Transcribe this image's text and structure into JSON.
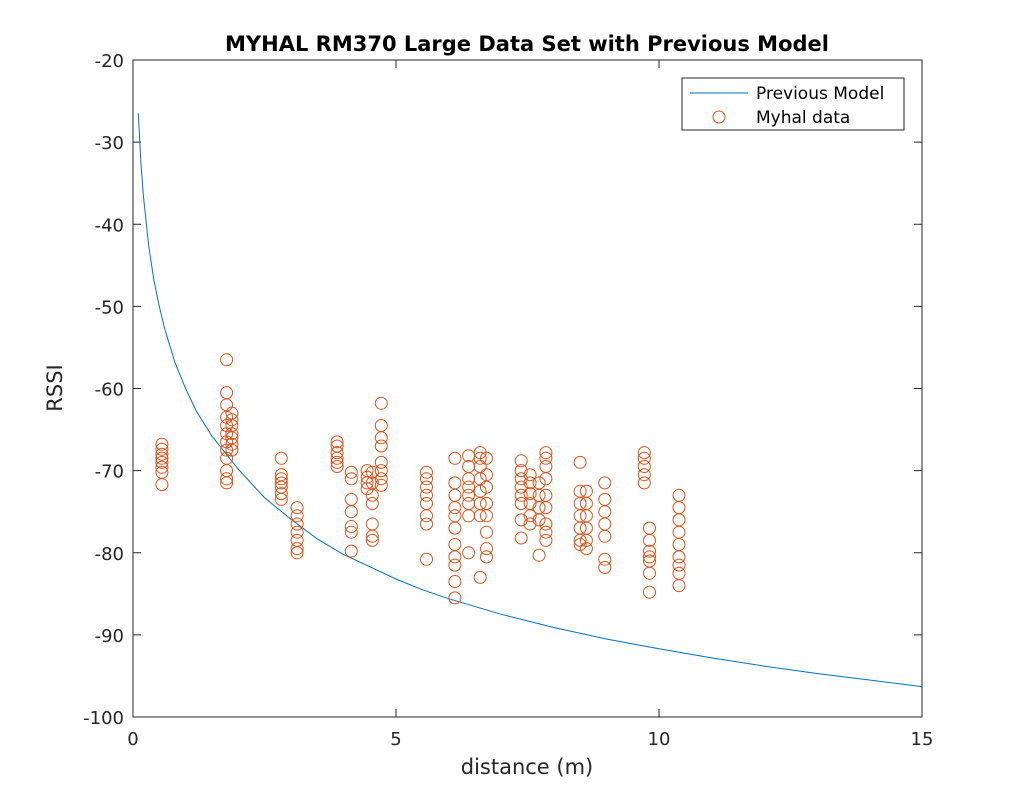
{
  "chart_data": {
    "type": "scatter",
    "title": "MYHAL RM370 Large Data Set with Previous Model",
    "xlabel": "distance (m)",
    "ylabel": "RSSI",
    "xlim": [
      0,
      15
    ],
    "ylim": [
      -100,
      -20
    ],
    "xticks": [
      0,
      5,
      10,
      15
    ],
    "xtick_labels": [
      "0",
      "5",
      "10",
      "15"
    ],
    "yticks": [
      -100,
      -90,
      -80,
      -70,
      -60,
      -50,
      -40,
      -30,
      -20
    ],
    "ytick_labels": [
      "-100",
      "-90",
      "-80",
      "-70",
      "-60",
      "-50",
      "-40",
      "-30",
      "-20"
    ],
    "grid": false,
    "legend_position": "top-right",
    "series": [
      {
        "name": "Previous Model",
        "kind": "line",
        "color": "#0072BD",
        "points": [
          [
            0.1,
            -26.5
          ],
          [
            0.15,
            -32.5
          ],
          [
            0.2,
            -36.7
          ],
          [
            0.3,
            -42.7
          ],
          [
            0.4,
            -46.9
          ],
          [
            0.5,
            -50.0
          ],
          [
            0.6,
            -52.7
          ],
          [
            0.8,
            -56.9
          ],
          [
            1.0,
            -60.0
          ],
          [
            1.2,
            -62.7
          ],
          [
            1.5,
            -65.8
          ],
          [
            2.0,
            -69.8
          ],
          [
            2.5,
            -73.3
          ],
          [
            3.0,
            -75.9
          ],
          [
            3.5,
            -78.3
          ],
          [
            4.0,
            -80.2
          ],
          [
            4.5,
            -81.7
          ],
          [
            5.0,
            -83.2
          ],
          [
            5.5,
            -84.5
          ],
          [
            6.0,
            -85.6
          ],
          [
            7.0,
            -87.5
          ],
          [
            8.0,
            -89.1
          ],
          [
            9.0,
            -90.5
          ],
          [
            10.0,
            -91.7
          ],
          [
            11.0,
            -92.8
          ],
          [
            12.0,
            -93.8
          ],
          [
            13.0,
            -94.7
          ],
          [
            14.0,
            -95.5
          ],
          [
            15.0,
            -96.3
          ]
        ]
      },
      {
        "name": "Myhal data",
        "kind": "scatter",
        "color": "#D95319",
        "points": [
          [
            0.55,
            -66.8
          ],
          [
            0.55,
            -67.4
          ],
          [
            0.55,
            -68.0
          ],
          [
            0.55,
            -68.5
          ],
          [
            0.55,
            -69.0
          ],
          [
            0.55,
            -69.6
          ],
          [
            0.55,
            -70.2
          ],
          [
            0.55,
            -71.7
          ],
          [
            1.78,
            -56.5
          ],
          [
            1.78,
            -60.5
          ],
          [
            1.78,
            -62.0
          ],
          [
            1.78,
            -63.5
          ],
          [
            1.78,
            -64.5
          ],
          [
            1.78,
            -65.5
          ],
          [
            1.78,
            -66.5
          ],
          [
            1.78,
            -67.5
          ],
          [
            1.78,
            -68.5
          ],
          [
            1.78,
            -70.0
          ],
          [
            1.78,
            -71.0
          ],
          [
            1.78,
            -71.5
          ],
          [
            1.88,
            -63.0
          ],
          [
            1.88,
            -63.8
          ],
          [
            1.88,
            -64.5
          ],
          [
            1.88,
            -65.5
          ],
          [
            1.88,
            -66.0
          ],
          [
            1.88,
            -66.8
          ],
          [
            1.88,
            -67.5
          ],
          [
            2.82,
            -68.5
          ],
          [
            2.82,
            -70.5
          ],
          [
            2.82,
            -71.0
          ],
          [
            2.82,
            -71.5
          ],
          [
            2.82,
            -72.0
          ],
          [
            2.82,
            -72.8
          ],
          [
            2.82,
            -73.5
          ],
          [
            3.12,
            -74.5
          ],
          [
            3.12,
            -75.5
          ],
          [
            3.12,
            -76.5
          ],
          [
            3.12,
            -77.5
          ],
          [
            3.12,
            -78.5
          ],
          [
            3.12,
            -79.5
          ],
          [
            3.12,
            -80.0
          ],
          [
            3.88,
            -66.5
          ],
          [
            3.88,
            -67.0
          ],
          [
            3.88,
            -67.8
          ],
          [
            3.88,
            -68.5
          ],
          [
            3.88,
            -69.0
          ],
          [
            3.88,
            -69.5
          ],
          [
            4.15,
            -70.2
          ],
          [
            4.15,
            -71.0
          ],
          [
            4.15,
            -73.5
          ],
          [
            4.15,
            -75.0
          ],
          [
            4.15,
            -76.8
          ],
          [
            4.15,
            -77.5
          ],
          [
            4.15,
            -79.8
          ],
          [
            4.45,
            -70.0
          ],
          [
            4.45,
            -70.8
          ],
          [
            4.45,
            -71.5
          ],
          [
            4.45,
            -72.2
          ],
          [
            4.55,
            -70.2
          ],
          [
            4.55,
            -71.5
          ],
          [
            4.55,
            -73.0
          ],
          [
            4.55,
            -74.0
          ],
          [
            4.55,
            -76.5
          ],
          [
            4.55,
            -78.0
          ],
          [
            4.55,
            -78.5
          ],
          [
            4.72,
            -61.8
          ],
          [
            4.72,
            -64.5
          ],
          [
            4.72,
            -66.0
          ],
          [
            4.72,
            -67.0
          ],
          [
            4.72,
            -69.0
          ],
          [
            4.72,
            -70.0
          ],
          [
            4.72,
            -71.0
          ],
          [
            4.72,
            -71.8
          ],
          [
            5.58,
            -70.2
          ],
          [
            5.58,
            -71.0
          ],
          [
            5.58,
            -72.0
          ],
          [
            5.58,
            -73.0
          ],
          [
            5.58,
            -74.0
          ],
          [
            5.58,
            -75.5
          ],
          [
            5.58,
            -76.5
          ],
          [
            5.58,
            -80.8
          ],
          [
            6.12,
            -68.5
          ],
          [
            6.12,
            -71.5
          ],
          [
            6.12,
            -73.0
          ],
          [
            6.12,
            -74.5
          ],
          [
            6.12,
            -75.5
          ],
          [
            6.12,
            -77.0
          ],
          [
            6.12,
            -79.0
          ],
          [
            6.12,
            -80.5
          ],
          [
            6.12,
            -81.5
          ],
          [
            6.12,
            -83.5
          ],
          [
            6.12,
            -85.5
          ],
          [
            6.38,
            -68.2
          ],
          [
            6.38,
            -69.5
          ],
          [
            6.38,
            -71.0
          ],
          [
            6.38,
            -72.0
          ],
          [
            6.38,
            -73.0
          ],
          [
            6.38,
            -74.0
          ],
          [
            6.38,
            -75.5
          ],
          [
            6.38,
            -80.0
          ],
          [
            6.6,
            -67.8
          ],
          [
            6.6,
            -68.5
          ],
          [
            6.6,
            -69.5
          ],
          [
            6.6,
            -71.0
          ],
          [
            6.6,
            -72.5
          ],
          [
            6.6,
            -74.0
          ],
          [
            6.6,
            -75.5
          ],
          [
            6.6,
            -83.0
          ],
          [
            6.72,
            -68.5
          ],
          [
            6.72,
            -70.5
          ],
          [
            6.72,
            -72.0
          ],
          [
            6.72,
            -74.0
          ],
          [
            6.72,
            -75.5
          ],
          [
            6.72,
            -77.5
          ],
          [
            6.72,
            -79.5
          ],
          [
            6.72,
            -80.5
          ],
          [
            7.38,
            -68.8
          ],
          [
            7.38,
            -70.0
          ],
          [
            7.38,
            -71.0
          ],
          [
            7.38,
            -72.0
          ],
          [
            7.38,
            -73.0
          ],
          [
            7.38,
            -74.0
          ],
          [
            7.38,
            -76.0
          ],
          [
            7.38,
            -78.2
          ],
          [
            7.55,
            -70.5
          ],
          [
            7.55,
            -71.5
          ],
          [
            7.55,
            -72.8
          ],
          [
            7.55,
            -74.0
          ],
          [
            7.55,
            -75.5
          ],
          [
            7.55,
            -76.5
          ],
          [
            7.72,
            -71.5
          ],
          [
            7.72,
            -73.0
          ],
          [
            7.72,
            -74.5
          ],
          [
            7.72,
            -76.0
          ],
          [
            7.72,
            -80.3
          ],
          [
            7.85,
            -67.8
          ],
          [
            7.85,
            -68.5
          ],
          [
            7.85,
            -69.5
          ],
          [
            7.85,
            -71.0
          ],
          [
            7.85,
            -73.0
          ],
          [
            7.85,
            -74.5
          ],
          [
            7.85,
            -76.5
          ],
          [
            7.85,
            -77.5
          ],
          [
            7.85,
            -78.5
          ],
          [
            8.5,
            -69.0
          ],
          [
            8.5,
            -72.5
          ],
          [
            8.5,
            -74.0
          ],
          [
            8.5,
            -75.5
          ],
          [
            8.5,
            -77.0
          ],
          [
            8.5,
            -78.5
          ],
          [
            8.5,
            -79.0
          ],
          [
            8.62,
            -72.5
          ],
          [
            8.62,
            -74.0
          ],
          [
            8.62,
            -75.5
          ],
          [
            8.62,
            -77.0
          ],
          [
            8.62,
            -78.5
          ],
          [
            8.62,
            -79.5
          ],
          [
            8.97,
            -71.5
          ],
          [
            8.97,
            -73.5
          ],
          [
            8.97,
            -75.0
          ],
          [
            8.97,
            -76.5
          ],
          [
            8.97,
            -78.0
          ],
          [
            8.97,
            -80.8
          ],
          [
            8.97,
            -81.8
          ],
          [
            9.72,
            -67.8
          ],
          [
            9.72,
            -68.5
          ],
          [
            9.72,
            -69.5
          ],
          [
            9.72,
            -70.5
          ],
          [
            9.72,
            -71.5
          ],
          [
            9.82,
            -77.0
          ],
          [
            9.82,
            -78.5
          ],
          [
            9.82,
            -79.8
          ],
          [
            9.82,
            -80.5
          ],
          [
            9.82,
            -81.0
          ],
          [
            9.82,
            -82.5
          ],
          [
            9.82,
            -84.8
          ],
          [
            10.38,
            -73.0
          ],
          [
            10.38,
            -74.5
          ],
          [
            10.38,
            -76.0
          ],
          [
            10.38,
            -77.5
          ],
          [
            10.38,
            -79.0
          ],
          [
            10.38,
            -80.5
          ],
          [
            10.38,
            -81.5
          ],
          [
            10.38,
            -82.5
          ],
          [
            10.38,
            -84.0
          ]
        ]
      }
    ]
  }
}
